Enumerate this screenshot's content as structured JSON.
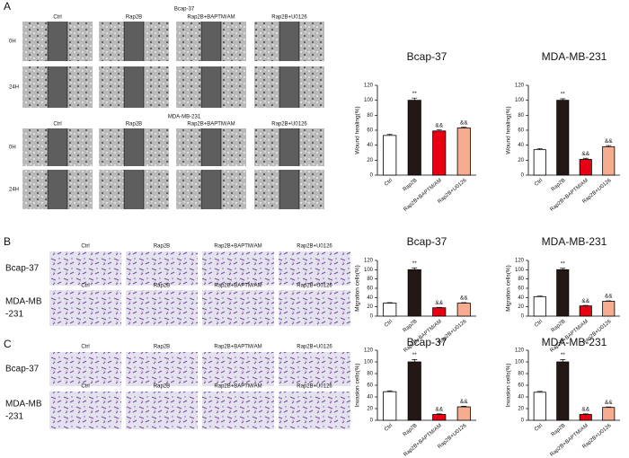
{
  "panels": [
    {
      "label": "A",
      "groups": [
        {
          "title": "Bcap-37",
          "columns": [
            "Ctrl",
            "Rap2B",
            "Rap2B+BAPTM/AM",
            "Rap2B+U0126"
          ],
          "rows": [
            "0H",
            "24H"
          ]
        },
        {
          "title": "MDA-MB-231",
          "columns": [
            "Ctrl",
            "Rap2B",
            "Rap2B+BAPTM/AM",
            "Rap2B+U0126"
          ],
          "rows": [
            "0H",
            "24H"
          ]
        }
      ]
    },
    {
      "label": "B",
      "columns": [
        "Ctrl",
        "Rap2B",
        "Rap2B+BAPTM/AM",
        "Rap2B+U0126"
      ],
      "rows": [
        [
          "Bcap-37"
        ],
        [
          "MDA-MB",
          "-231"
        ]
      ]
    },
    {
      "label": "C",
      "columns": [
        "Ctrl",
        "Rap2B",
        "Rap2B+BAPTM/AM",
        "Rap2B+U0126"
      ],
      "rows": [
        [
          "Bcap-37"
        ],
        [
          "MDA-MB",
          "-231"
        ]
      ]
    }
  ],
  "chart_data": [
    {
      "type": "bar",
      "title": "Bcap-37",
      "y_label": "Wound  healing(%)",
      "categories": [
        "Ctrl",
        "Rap2B",
        "Rap2B+BAPTM/AM",
        "Rap2B+U0126"
      ],
      "values": [
        53,
        100,
        59,
        63
      ],
      "errors": [
        1.5,
        3,
        1.5,
        1
      ],
      "colors": [
        "#ffffff",
        "#231815",
        "#e60012",
        "#f6ad8f"
      ],
      "annotations": [
        null,
        "**",
        "&&",
        "&&"
      ],
      "ylim": [
        0,
        120
      ],
      "yticks": [
        0,
        20,
        40,
        60,
        80,
        100,
        120
      ]
    },
    {
      "type": "bar",
      "title": "MDA-MB-231",
      "y_label": "Wound  healing(%)",
      "categories": [
        "Ctrl",
        "Rap2B",
        "Rap2B+BAPTM/AM",
        "Rap2B+U0126"
      ],
      "values": [
        34,
        100,
        21,
        38
      ],
      "errors": [
        1.5,
        2,
        1.5,
        1.5
      ],
      "colors": [
        "#ffffff",
        "#231815",
        "#e60012",
        "#f6ad8f"
      ],
      "annotations": [
        null,
        "**",
        "&&",
        "&&"
      ],
      "ylim": [
        0,
        120
      ],
      "yticks": [
        0,
        20,
        40,
        60,
        80,
        100,
        120
      ]
    },
    {
      "type": "bar",
      "title": "Bcap-37",
      "y_label": "Migration cells(%)",
      "categories": [
        "Ctrl",
        "Rap2B",
        "Rap2B+BAPTM/AM",
        "Rap2B+U0126"
      ],
      "values": [
        28,
        100,
        18,
        28
      ],
      "errors": [
        1,
        4,
        1,
        1
      ],
      "colors": [
        "#ffffff",
        "#231815",
        "#e60012",
        "#f6ad8f"
      ],
      "annotations": [
        null,
        "**",
        "&&",
        "&&"
      ],
      "ylim": [
        0,
        120
      ],
      "yticks": [
        0,
        20,
        40,
        60,
        80,
        100,
        120
      ]
    },
    {
      "type": "bar",
      "title": "MDA-MB-231",
      "y_label": "Migration cells(%)",
      "categories": [
        "Ctrl",
        "Rap2B",
        "Rap2B+BAPTM/AM",
        "Rap2B+U0126"
      ],
      "values": [
        42,
        100,
        22,
        32
      ],
      "errors": [
        1,
        3,
        1,
        1
      ],
      "colors": [
        "#ffffff",
        "#231815",
        "#e60012",
        "#f6ad8f"
      ],
      "annotations": [
        null,
        "**",
        "&&",
        "&&"
      ],
      "ylim": [
        0,
        120
      ],
      "yticks": [
        0,
        20,
        40,
        60,
        80,
        100,
        120
      ]
    },
    {
      "type": "bar",
      "title": "Bcap-37",
      "y_label": "Invasion cells(%)",
      "categories": [
        "Ctrl",
        "Rap2B",
        "Rap2B+BAPTM/AM",
        "Rap2B+U0126"
      ],
      "values": [
        49,
        100,
        10,
        23
      ],
      "errors": [
        1.5,
        4,
        1,
        1
      ],
      "colors": [
        "#ffffff",
        "#231815",
        "#e60012",
        "#f6ad8f"
      ],
      "annotations": [
        null,
        "**",
        "&&",
        "&&"
      ],
      "ylim": [
        0,
        120
      ],
      "yticks": [
        0,
        20,
        40,
        60,
        80,
        100,
        120
      ]
    },
    {
      "type": "bar",
      "title": "MDA-MB-231",
      "y_label": "Invasion cells(%)",
      "categories": [
        "Ctrl",
        "Rap2B",
        "Rap2B+BAPTM/AM",
        "Rap2B+U0126"
      ],
      "values": [
        48,
        100,
        10,
        22
      ],
      "errors": [
        1.5,
        4,
        1,
        1
      ],
      "colors": [
        "#ffffff",
        "#231815",
        "#e60012",
        "#f6ad8f"
      ],
      "annotations": [
        null,
        "**",
        "&&",
        "&&"
      ],
      "ylim": [
        0,
        120
      ],
      "yticks": [
        0,
        20,
        40,
        60,
        80,
        100,
        120
      ]
    }
  ]
}
